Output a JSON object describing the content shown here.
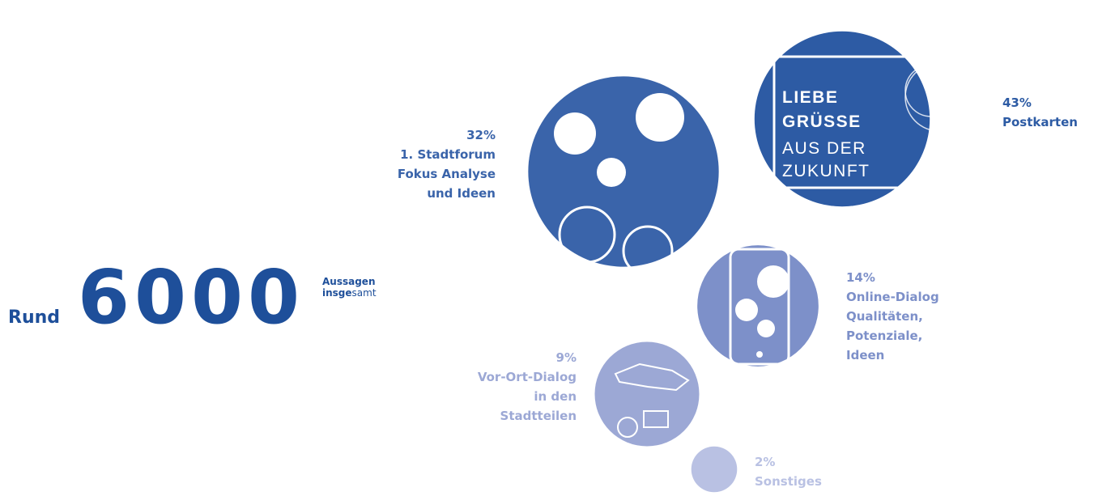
{
  "chart_data": {
    "type": "bubble",
    "headline": {
      "prefix": "Rund",
      "total": 6000,
      "suffix_line1": "Aussagen",
      "suffix_line2_bold": "insge",
      "suffix_line2": "samt"
    },
    "categories": [
      [
        "Postkarten"
      ],
      [
        "1. Stadtforum",
        "Fokus Analyse",
        "und Ideen"
      ],
      [
        "Online-Dialog",
        "Qualitäten,",
        "Potenziale,",
        "Ideen"
      ],
      [
        "Vor-Ort-Dialog",
        "in den",
        "Stadtteilen"
      ],
      [
        "Sonstiges"
      ]
    ],
    "values": [
      43,
      32,
      14,
      9,
      2
    ],
    "value_labels": [
      "43%",
      "32%",
      "14%",
      "9%",
      "2%"
    ],
    "colors": [
      "#2d5ba4",
      "#3a64aa",
      "#7d90c9",
      "#9ca8d5",
      "#b9c1e3"
    ],
    "postcard_text": [
      "LIEBE",
      "GRÜSSE",
      "AUS DER",
      "ZUKUNFT"
    ]
  }
}
